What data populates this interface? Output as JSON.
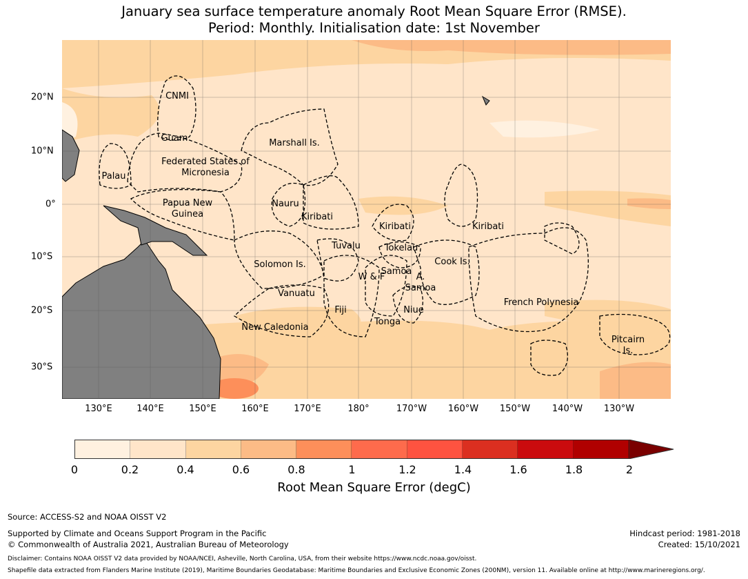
{
  "title": {
    "line1": "January sea surface temperature anomaly Root Mean Square Error (RMSE).",
    "line2": "Period: Monthly. Initialisation date: 1st November"
  },
  "map": {
    "regions": [
      "CNMI",
      "Guam",
      "Marshall Is.",
      "Federated States of Micronesia",
      "Palau",
      "Papua New Guinea",
      "Nauru",
      "Kiribati",
      "Kiribati",
      "Kiribati",
      "Tuvalu",
      "Tokelau",
      "Solomon Is.",
      "Samoa",
      "W & F",
      "A. Samoa",
      "Cook Is.",
      "Vanuatu",
      "Fiji",
      "Niue",
      "Tonga",
      "New Caledonia",
      "French Polynesia",
      "Pitcairn Is."
    ],
    "lon_ticks": [
      "130°E",
      "140°E",
      "150°E",
      "160°E",
      "170°E",
      "180°",
      "170°W",
      "160°W",
      "150°W",
      "140°W",
      "130°W"
    ],
    "lat_ticks": [
      "20°N",
      "10°N",
      "0°",
      "10°S",
      "20°S",
      "30°S"
    ],
    "land_color": "#808080"
  },
  "colorbar": {
    "ticks": [
      "0",
      "0.2",
      "0.4",
      "0.6",
      "0.8",
      "1",
      "1.2",
      "1.4",
      "1.6",
      "1.8",
      "2"
    ],
    "colors": [
      "#fff1e0",
      "#ffe5c9",
      "#fdd5a1",
      "#fcbb86",
      "#fd8f5a",
      "#fe6b4c",
      "#fe5340",
      "#db2f20",
      "#ca0b0e",
      "#b00000"
    ],
    "extend_color": "#7a0000",
    "label": "Root Mean Square Error (degC)"
  },
  "footer": {
    "source": "Source: ACCESS-S2 and NOAA OISST V2",
    "support": "Supported by Climate and Oceans Support Program in the Pacific",
    "copyright": "© Commonwealth of Australia 2021, Australian Bureau of Meteorology",
    "hindcast": "Hindcast period: 1981-2018",
    "created": "Created: 15/10/2021",
    "disclaimer": "Disclaimer: Contains NOAA OISST V2 data provided by NOAA/NCEI, Asheville, North Carolina, USA, from their website https://www.ncdc.noaa.gov/oisst.",
    "shapefile": "Shapefile data extracted from Flanders Marine Institute (2019), Maritime Boundaries Geodatabase: Maritime Boundaries and Exclusive Economic Zones (200NM), version 11. Available online at http://www.marineregions.org/."
  }
}
